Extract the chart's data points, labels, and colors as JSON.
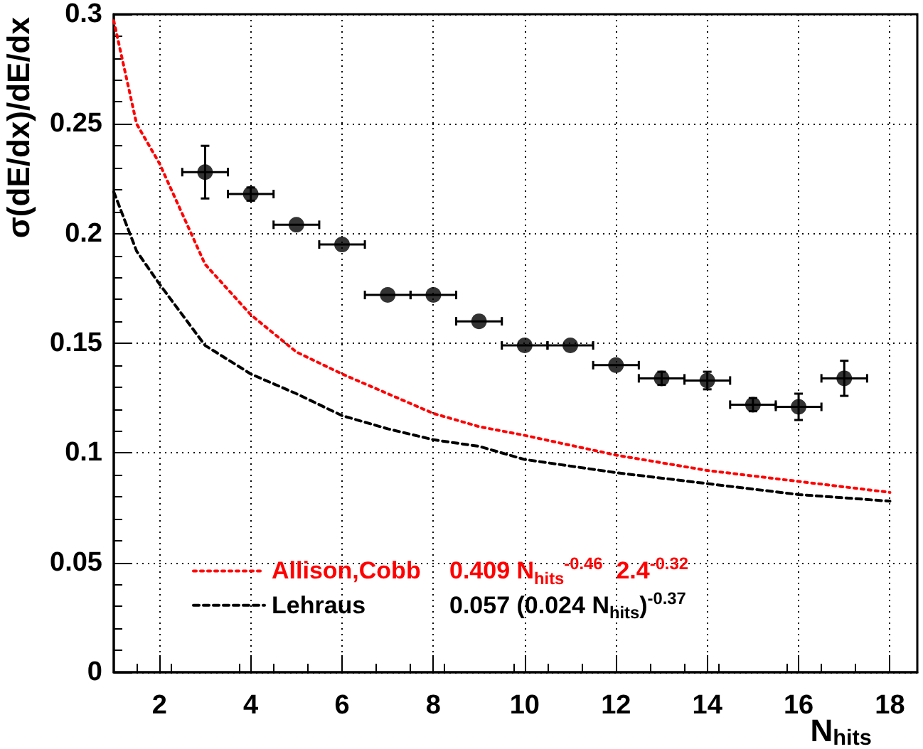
{
  "chart_data": {
    "type": "scatter",
    "xlabel": "N$_{hits}$",
    "ylabel": "σ(dE/dx)/dE/dx",
    "xlim": [
      1,
      18.6
    ],
    "xticks": [
      2,
      4,
      6,
      8,
      10,
      12,
      14,
      16,
      18
    ],
    "ylim": [
      0,
      0.3
    ],
    "yticks": [
      0,
      0.05,
      0.1,
      0.15,
      0.2,
      0.25,
      0.3
    ],
    "grid": true,
    "legend": "bottom left",
    "marker": "circle",
    "series": [
      {
        "type": "scatter",
        "color": "#000000",
        "x": [
          3,
          4,
          5,
          6,
          7,
          8,
          9,
          10,
          11,
          12,
          13,
          14,
          15,
          16,
          17
        ],
        "values": [
          0.228,
          0.218,
          0.204,
          0.195,
          0.172,
          0.172,
          0.16,
          0.149,
          0.149,
          0.14,
          0.134,
          0.133,
          0.122,
          0.121,
          0.134
        ],
        "errors": [
          0.012,
          0.003,
          null,
          null,
          null,
          null,
          null,
          null,
          null,
          null,
          0.003,
          0.004,
          0.003,
          0.006,
          0.008
        ],
        "xerrors": [
          0.5,
          0.5,
          0.5,
          0.5,
          0.5,
          0.5,
          0.5,
          0.5,
          0.5,
          0.5,
          0.5,
          0.5,
          0.5,
          0.5,
          0.5
        ]
      },
      {
        "type": "line",
        "name": "Allison,Cobb   0.409 N$_{hits}$$^{-0.46}$  2.4$^{-0.32}$",
        "color": "#ff0000",
        "line_style": "dotted",
        "marker": "none",
        "x": [
          1,
          1.5,
          2,
          3,
          4,
          5,
          6,
          7,
          8,
          9,
          10,
          12,
          14,
          16,
          18
        ],
        "values": [
          0.297,
          0.25,
          0.232,
          0.186,
          0.163,
          0.146,
          0.136,
          0.127,
          0.118,
          0.112,
          0.108,
          0.099,
          0.092,
          0.087,
          0.082
        ]
      },
      {
        "type": "line",
        "name": "Lehraus   0.057 (0.024 N$_{hits}$)$^{-0.37}$",
        "color": "#000000",
        "line_style": "dashed",
        "marker": "none",
        "x": [
          1,
          1.5,
          2,
          3,
          4,
          5,
          6,
          7,
          8,
          9,
          10,
          12,
          14,
          16,
          18
        ],
        "values": [
          0.219,
          0.192,
          0.177,
          0.149,
          0.136,
          0.127,
          0.117,
          0.111,
          0.106,
          0.103,
          0.097,
          0.091,
          0.086,
          0.081,
          0.078
        ]
      }
    ]
  }
}
